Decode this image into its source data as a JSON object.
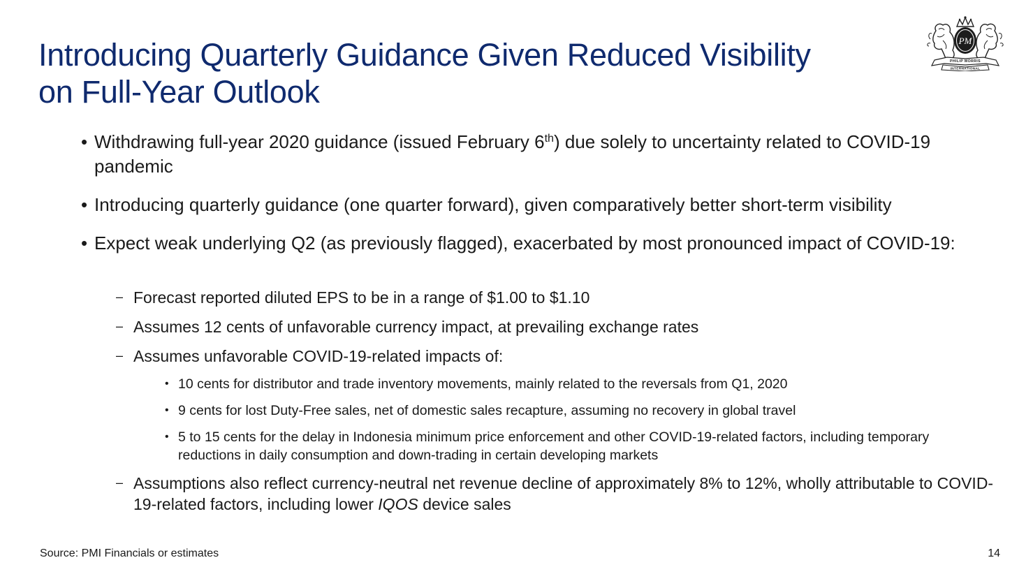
{
  "title": {
    "line1": "Introducing Quarterly Guidance Given Reduced Visibility",
    "line2": "on Full-Year Outlook"
  },
  "logo": {
    "monogram": "PM",
    "banner_top": "PHILIP MORRIS",
    "banner_bottom": "INTERNATIONAL"
  },
  "bullets": {
    "b1": {
      "mark": "•",
      "pre": "Withdrawing full-year 2020 guidance (issued February 6",
      "sup": "th",
      "post": ") due solely to uncertainty related to COVID-19 pandemic"
    },
    "b2": {
      "mark": "•",
      "text": "Introducing quarterly guidance (one quarter forward), given comparatively better short-term visibility"
    },
    "b3": {
      "mark": "•",
      "text": "Expect weak underlying Q2 (as previously flagged), exacerbated by most pronounced impact of COVID-19:"
    }
  },
  "sub_bullets": {
    "s1": {
      "mark": "–",
      "text": "Forecast reported diluted EPS to be in a range of $1.00 to $1.10"
    },
    "s2": {
      "mark": "–",
      "text": "Assumes 12 cents of unfavorable currency impact, at prevailing exchange rates"
    },
    "s3": {
      "mark": "–",
      "text": "Assumes unfavorable COVID-19-related impacts of:"
    },
    "s4": {
      "mark": "–",
      "pre": "Assumptions also reflect currency-neutral net revenue decline of approximately 8% to 12%, wholly attributable to COVID-19-related factors, including lower ",
      "italic": "IQOS",
      "post": " device sales"
    }
  },
  "sub_sub_bullets": {
    "t1": {
      "mark": "•",
      "text": "10 cents for distributor and trade inventory movements, mainly related to the reversals from Q1, 2020"
    },
    "t2": {
      "mark": "•",
      "text": "9 cents for lost Duty-Free sales, net of domestic sales recapture, assuming no recovery in global travel"
    },
    "t3": {
      "mark": "•",
      "text": "5 to 15 cents for the delay in Indonesia minimum price enforcement and other COVID-19-related factors, including temporary reductions in daily consumption and down-trading in certain developing markets"
    }
  },
  "footer": {
    "source": "Source: PMI Financials or estimates",
    "page_number": "14"
  },
  "colors": {
    "title": "#0f2a6e",
    "text": "#1a1a1a",
    "background": "#ffffff"
  }
}
